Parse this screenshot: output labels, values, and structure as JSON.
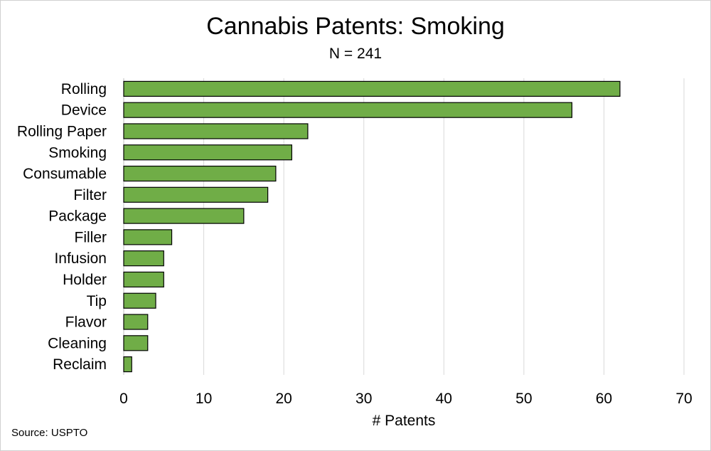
{
  "chart_data": {
    "type": "bar",
    "orientation": "horizontal",
    "title": "Cannabis Patents: Smoking",
    "subtitle": "N = 241",
    "xlabel": "# Patents",
    "ylabel": "",
    "xlim": [
      0,
      70
    ],
    "xticks": [
      0,
      10,
      20,
      30,
      40,
      50,
      60,
      70
    ],
    "grid": "vertical",
    "categories": [
      "Rolling",
      "Device",
      "Rolling Paper",
      "Smoking",
      "Consumable",
      "Filter",
      "Package",
      "Filler",
      "Infusion",
      "Holder",
      "Tip",
      "Flavor",
      "Cleaning",
      "Reclaim"
    ],
    "values": [
      62,
      56,
      23,
      21,
      19,
      18,
      15,
      6,
      5,
      5,
      4,
      3,
      3,
      1
    ],
    "colors": {
      "bar": "#70AD47",
      "bar_border": "#000000",
      "grid": "#d9d9d9"
    }
  },
  "source": "Source: USPTO"
}
